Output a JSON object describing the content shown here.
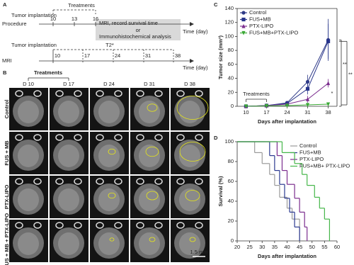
{
  "panel_a": {
    "label": "A",
    "treatments": "Treatments",
    "procedure": {
      "row_label": "Procedure",
      "event": "Tumor implantation",
      "days": [
        "10",
        "13",
        "16"
      ],
      "box_lines": [
        "MRI, record survival time",
        "or",
        "Immunohistochemical analysis"
      ],
      "axis_label": "Time (day)"
    },
    "mri": {
      "row_label": "MRI",
      "event": "Tumor implantation",
      "sequence": "T2*",
      "days": [
        "10",
        "17",
        "24",
        "31",
        "38"
      ],
      "axis_label": "Time (day)"
    }
  },
  "panel_b": {
    "label": "B",
    "treatments": "Treatments",
    "columns": [
      "D 10",
      "D 17",
      "D 24",
      "D 31",
      "D 38"
    ],
    "rows": [
      "Control",
      "FUS + MB",
      "PTX-LIPO",
      "FUS + MB + PTX-LIPO"
    ],
    "scale_bar": "1.5 mm"
  },
  "chart_data": [
    {
      "type": "line",
      "label": "C",
      "y_label": "Tumor size (mm³)",
      "x_label": "Days after implantation",
      "x": [
        10,
        17,
        24,
        31,
        38
      ],
      "xlim": [
        7,
        41
      ],
      "xticks": [
        10,
        17,
        24,
        31,
        38
      ],
      "ylim": [
        0,
        140
      ],
      "yticks": [
        0,
        20,
        40,
        60,
        80,
        100,
        120,
        140
      ],
      "legend": "upper left",
      "annotations": [
        "Treatments",
        "**",
        "**",
        "*"
      ],
      "series": [
        {
          "name": "Control",
          "color": "#2e3a87",
          "marker": "circle",
          "values": [
            0,
            1,
            5,
            35,
            95
          ],
          "errors": [
            0,
            1,
            3,
            10,
            30
          ]
        },
        {
          "name": "FUS+MB",
          "color": "#27348b",
          "marker": "square",
          "values": [
            0,
            1,
            4,
            25,
            93
          ],
          "errors": [
            0,
            1,
            2,
            8,
            25
          ]
        },
        {
          "name": "PTX-LIPO",
          "color": "#7b2d8e",
          "marker": "triangle-up",
          "values": [
            0,
            1,
            3,
            10,
            33
          ],
          "errors": [
            0,
            0.5,
            1,
            5,
            6
          ]
        },
        {
          "name": "FUS+MB+PTX-LIPO",
          "color": "#3aa935",
          "marker": "triangle-down",
          "values": [
            0,
            0.5,
            1,
            2,
            3
          ],
          "errors": [
            0,
            0.3,
            0.5,
            1,
            1
          ]
        }
      ]
    },
    {
      "type": "step",
      "label": "D",
      "y_label": "Survival (%)",
      "x_label": "Days after implantation",
      "xlim": [
        20,
        60
      ],
      "xticks": [
        20,
        25,
        30,
        35,
        40,
        45,
        50,
        55,
        60
      ],
      "ylim": [
        0,
        100
      ],
      "yticks": [
        0,
        20,
        40,
        60,
        80,
        100
      ],
      "legend": "upper right",
      "series": [
        {
          "name": "Control",
          "color": "#9a9a9a",
          "x": [
            20,
            25,
            27,
            30,
            33,
            35,
            37,
            40,
            42,
            45
          ],
          "values": [
            100,
            100,
            89,
            78,
            67,
            56,
            44,
            33,
            22,
            0
          ]
        },
        {
          "name": "FUS+MB",
          "color": "#2b3990",
          "x": [
            20,
            31,
            33,
            35,
            37,
            39,
            41,
            43,
            45
          ],
          "values": [
            100,
            100,
            86,
            71,
            57,
            43,
            29,
            14,
            0
          ]
        },
        {
          "name": "PTX-LIPO",
          "color": "#7b2d8e",
          "x": [
            20,
            33,
            36,
            38,
            40,
            43,
            45,
            47,
            48
          ],
          "values": [
            100,
            100,
            86,
            71,
            57,
            43,
            29,
            14,
            0
          ]
        },
        {
          "name": "FUS+MB+ PTX-LIPO",
          "color": "#45b649",
          "x": [
            20,
            36,
            38,
            43,
            46,
            48,
            51,
            53,
            55,
            57
          ],
          "values": [
            100,
            100,
            89,
            78,
            67,
            56,
            44,
            33,
            22,
            0
          ]
        }
      ]
    }
  ]
}
